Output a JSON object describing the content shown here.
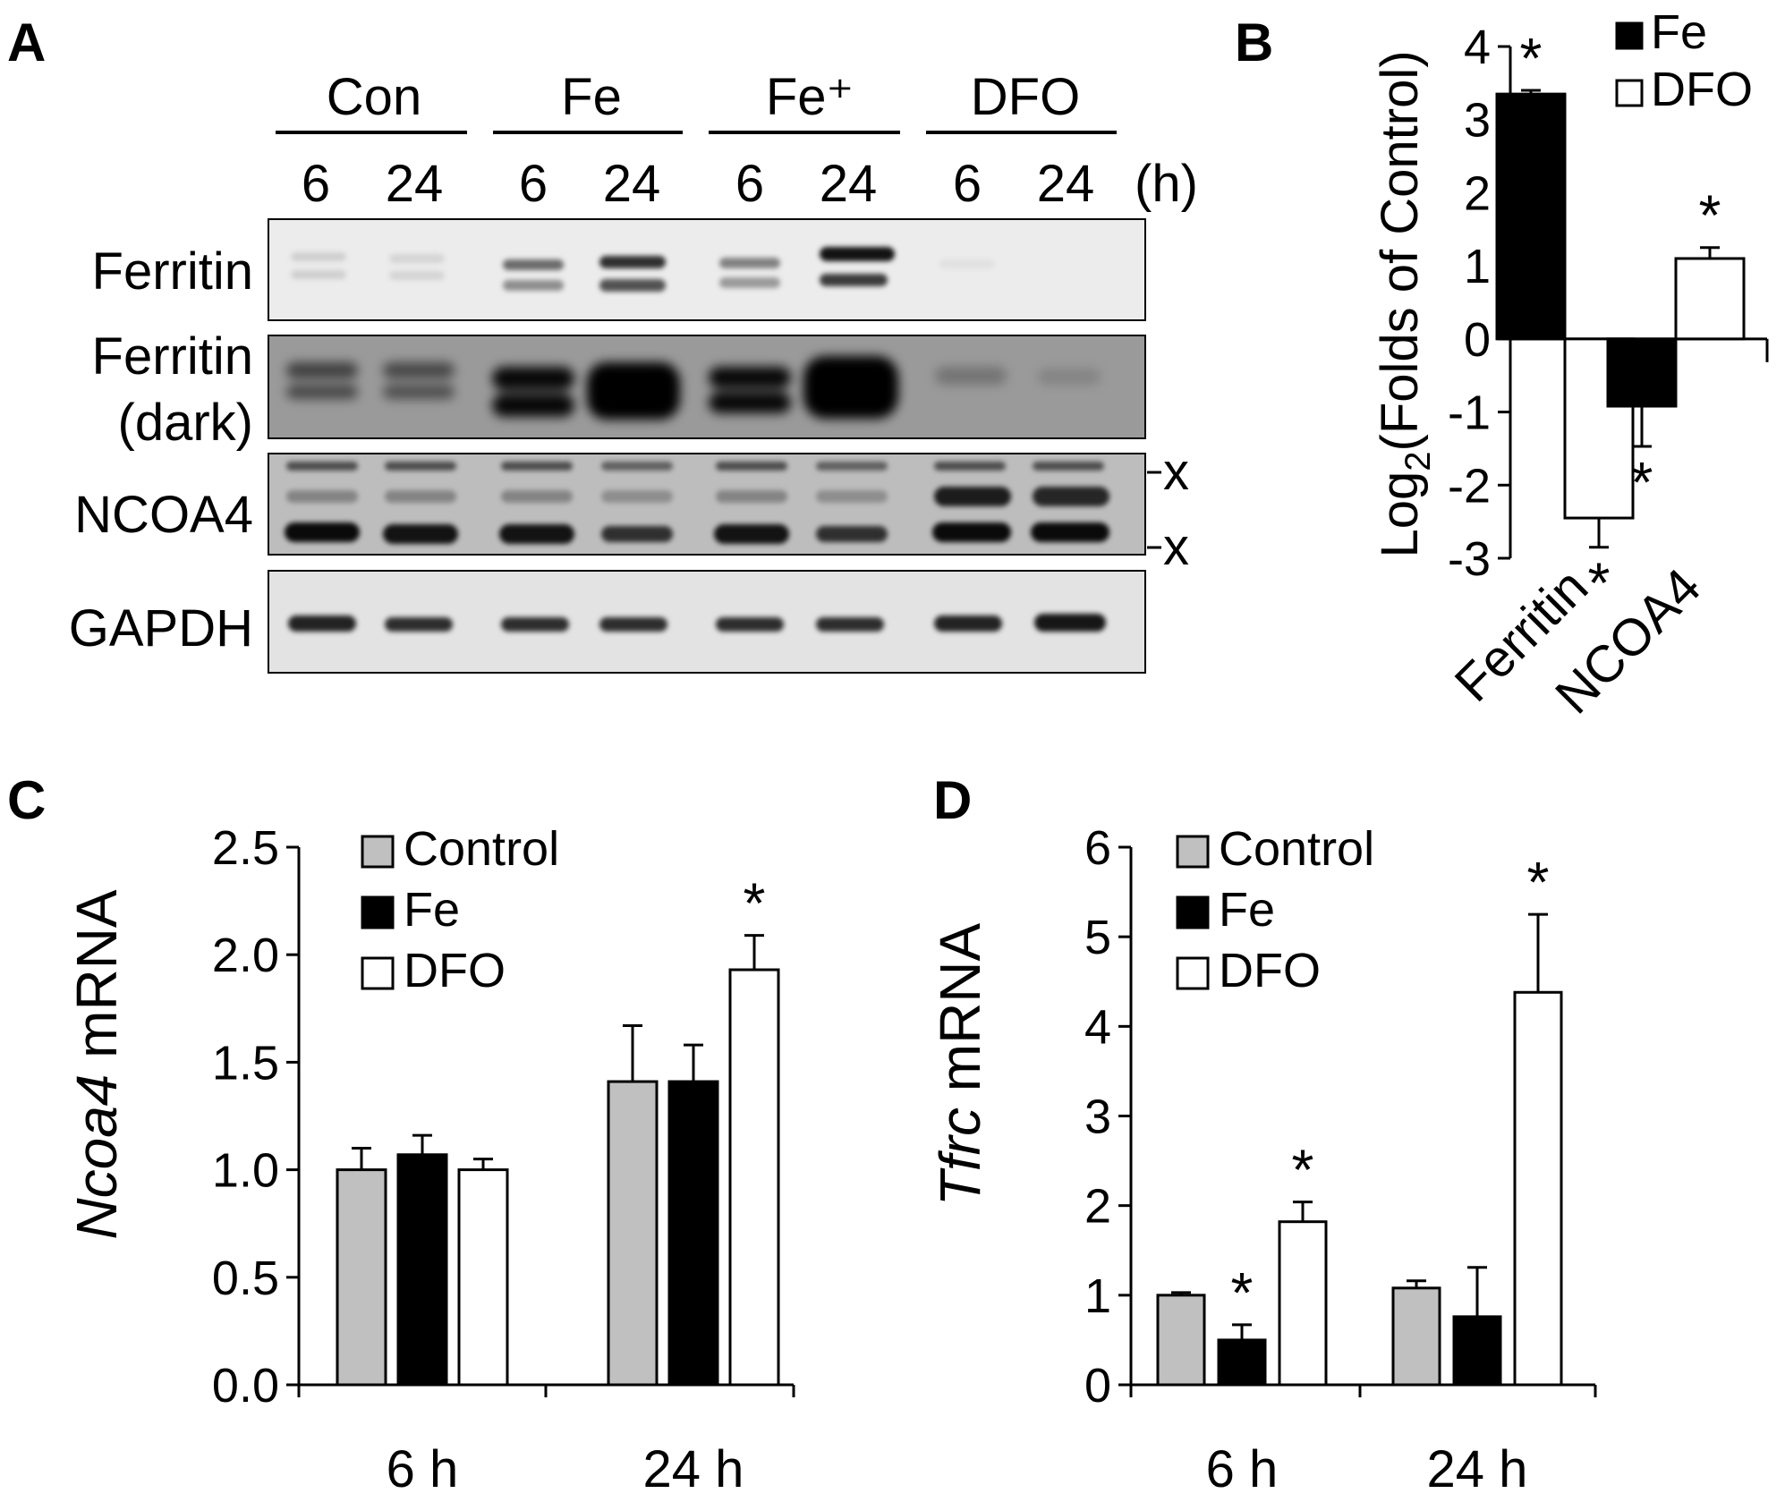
{
  "colors": {
    "control": "#c0c0c0",
    "fe": "#000000",
    "dfo": "#ffffff",
    "blot_bg": "#e6e6e6",
    "blot_dark_bg": "#8a8a8a"
  },
  "panels": [
    {
      "id": "A",
      "letter": "A"
    },
    {
      "id": "B",
      "letter": "B"
    },
    {
      "id": "C",
      "letter": "C"
    },
    {
      "id": "D",
      "letter": "D"
    }
  ],
  "blot": {
    "groups": [
      "Con",
      "Fe",
      "Fe⁺",
      "DFO"
    ],
    "times": [
      "6",
      "24",
      "6",
      "24",
      "6",
      "24",
      "6",
      "24"
    ],
    "time_unit": "(h)",
    "rows": [
      {
        "label": "Ferritin",
        "label2": ""
      },
      {
        "label": "Ferritin",
        "label2": "(dark)"
      },
      {
        "label": "NCOA4",
        "label2": ""
      },
      {
        "label": "GAPDH",
        "label2": ""
      }
    ],
    "nonspecific_mark": "x"
  },
  "chart_data": [
    {
      "panel": "B",
      "type": "bar",
      "categories": [
        "Ferritin",
        "NCOA4"
      ],
      "ylabel": "Log₂(Folds of Control)",
      "ylim": [
        -3,
        4
      ],
      "yticks": [
        "4",
        "3",
        "2",
        "1",
        "0",
        "-1",
        "-2",
        "-3"
      ],
      "legend": "top-right",
      "series": [
        {
          "name": "Fe",
          "values": [
            3.35,
            -0.92
          ],
          "errors": [
            0.05,
            0.55
          ],
          "sig": [
            "*",
            "*"
          ]
        },
        {
          "name": "DFO",
          "values": [
            -2.45,
            1.1
          ],
          "errors": [
            0.4,
            0.15
          ],
          "sig": [
            "*",
            "*"
          ]
        }
      ]
    },
    {
      "panel": "C",
      "type": "bar",
      "categories": [
        "6 h",
        "24 h"
      ],
      "ylabel_italic": "Ncoa4",
      "ylabel_rest": " mRNA",
      "ylim": [
        0,
        2.5
      ],
      "yticks": [
        "0.0",
        "0.5",
        "1.0",
        "1.5",
        "2.0",
        "2.5"
      ],
      "legend": "top-left",
      "series": [
        {
          "name": "Control",
          "values": [
            1.0,
            1.41
          ],
          "errors": [
            0.1,
            0.26
          ],
          "sig": [
            "",
            ""
          ]
        },
        {
          "name": "Fe",
          "values": [
            1.07,
            1.41
          ],
          "errors": [
            0.09,
            0.17
          ],
          "sig": [
            "",
            ""
          ]
        },
        {
          "name": "DFO",
          "values": [
            1.0,
            1.93
          ],
          "errors": [
            0.05,
            0.16
          ],
          "sig": [
            "",
            "*"
          ]
        }
      ]
    },
    {
      "panel": "D",
      "type": "bar",
      "categories": [
        "6 h",
        "24 h"
      ],
      "ylabel_italic": "Tfrc",
      "ylabel_rest": " mRNA",
      "ylim": [
        0,
        6
      ],
      "yticks": [
        "0",
        "1",
        "2",
        "3",
        "4",
        "5",
        "6"
      ],
      "legend": "top-left",
      "series": [
        {
          "name": "Control",
          "values": [
            1.0,
            1.08
          ],
          "errors": [
            0.03,
            0.08
          ],
          "sig": [
            "",
            ""
          ]
        },
        {
          "name": "Fe",
          "values": [
            0.5,
            0.76
          ],
          "errors": [
            0.17,
            0.55
          ],
          "sig": [
            "*",
            ""
          ]
        },
        {
          "name": "DFO",
          "values": [
            1.82,
            4.38
          ],
          "errors": [
            0.22,
            0.87
          ],
          "sig": [
            "*",
            "*"
          ]
        }
      ]
    }
  ]
}
